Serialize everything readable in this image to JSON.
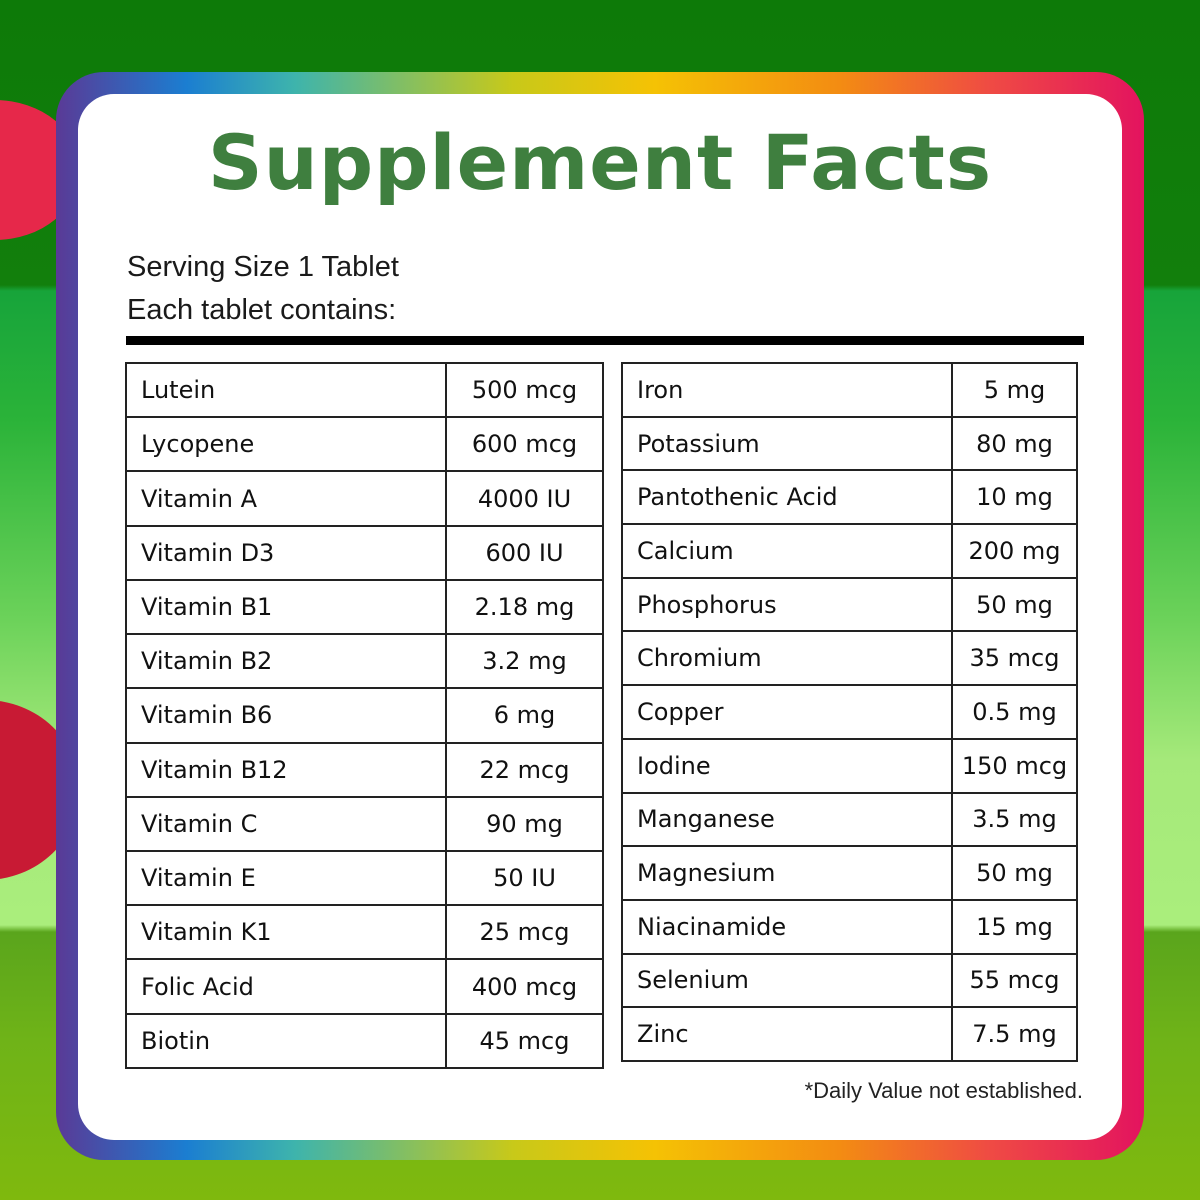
{
  "title": "Supplement Facts",
  "serving_size": "Serving Size 1 Tablet",
  "each_contains": "Each tablet contains:",
  "left_nutrients": [
    {
      "name": "Lutein",
      "amount": "500 mcg"
    },
    {
      "name": "Lycopene",
      "amount": "600 mcg"
    },
    {
      "name": "Vitamin A",
      "amount": "4000 IU"
    },
    {
      "name": "Vitamin D3",
      "amount": "600 IU"
    },
    {
      "name": "Vitamin B1",
      "amount": "2.18 mg"
    },
    {
      "name": "Vitamin B2",
      "amount": "3.2 mg"
    },
    {
      "name": "Vitamin B6",
      "amount": "6 mg"
    },
    {
      "name": "Vitamin B12",
      "amount": "22 mcg"
    },
    {
      "name": "Vitamin C",
      "amount": "90 mg"
    },
    {
      "name": "Vitamin E",
      "amount": "50 IU"
    },
    {
      "name": "Vitamin K1",
      "amount": "25 mcg"
    },
    {
      "name": "Folic Acid",
      "amount": "400 mcg"
    },
    {
      "name": "Biotin",
      "amount": "45 mcg"
    }
  ],
  "right_nutrients": [
    {
      "name": "Iron",
      "amount": "5 mg"
    },
    {
      "name": "Potassium",
      "amount": "80 mg"
    },
    {
      "name": "Pantothenic Acid",
      "amount": "10 mg"
    },
    {
      "name": "Calcium",
      "amount": "200 mg"
    },
    {
      "name": "Phosphorus",
      "amount": "50 mg"
    },
    {
      "name": "Chromium",
      "amount": "35 mcg"
    },
    {
      "name": "Copper",
      "amount": "0.5 mg"
    },
    {
      "name": "Iodine",
      "amount": "150 mcg"
    },
    {
      "name": "Manganese",
      "amount": "3.5 mg"
    },
    {
      "name": "Magnesium",
      "amount": "50 mg"
    },
    {
      "name": "Niacinamide",
      "amount": "15 mg"
    },
    {
      "name": "Selenium",
      "amount": "55 mcg"
    },
    {
      "name": "Zinc",
      "amount": "7.5 mg"
    }
  ],
  "footnote": "*Daily Value not established.",
  "colors": {
    "title_green": "#3f7f3f",
    "bg_dark_green": "#0d7a08",
    "bg_light_green": "#aaee7c",
    "accent_red": "#e6284a"
  }
}
